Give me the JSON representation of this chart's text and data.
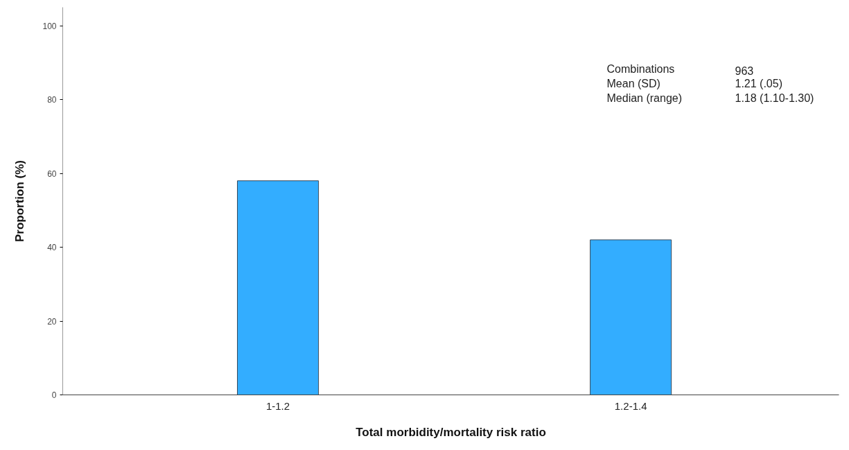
{
  "chart_data": {
    "type": "bar",
    "xlabel": "Total morbidity/mortality risk ratio",
    "ylabel": "Proportion (%)",
    "categories": [
      "1-1.2",
      "1.2-1.4"
    ],
    "series": [
      {
        "color": "#33adff",
        "values": [
          58,
          42
        ]
      }
    ],
    "ylim": [
      0,
      105
    ],
    "yticks": [
      0,
      20,
      40,
      60,
      80,
      100
    ],
    "grid": false,
    "annotations": [
      "Combinations",
      "963",
      "Mean (SD)",
      "1.21 (.05)",
      "Median (range)",
      "1.18 (1.10-1.30)"
    ]
  }
}
